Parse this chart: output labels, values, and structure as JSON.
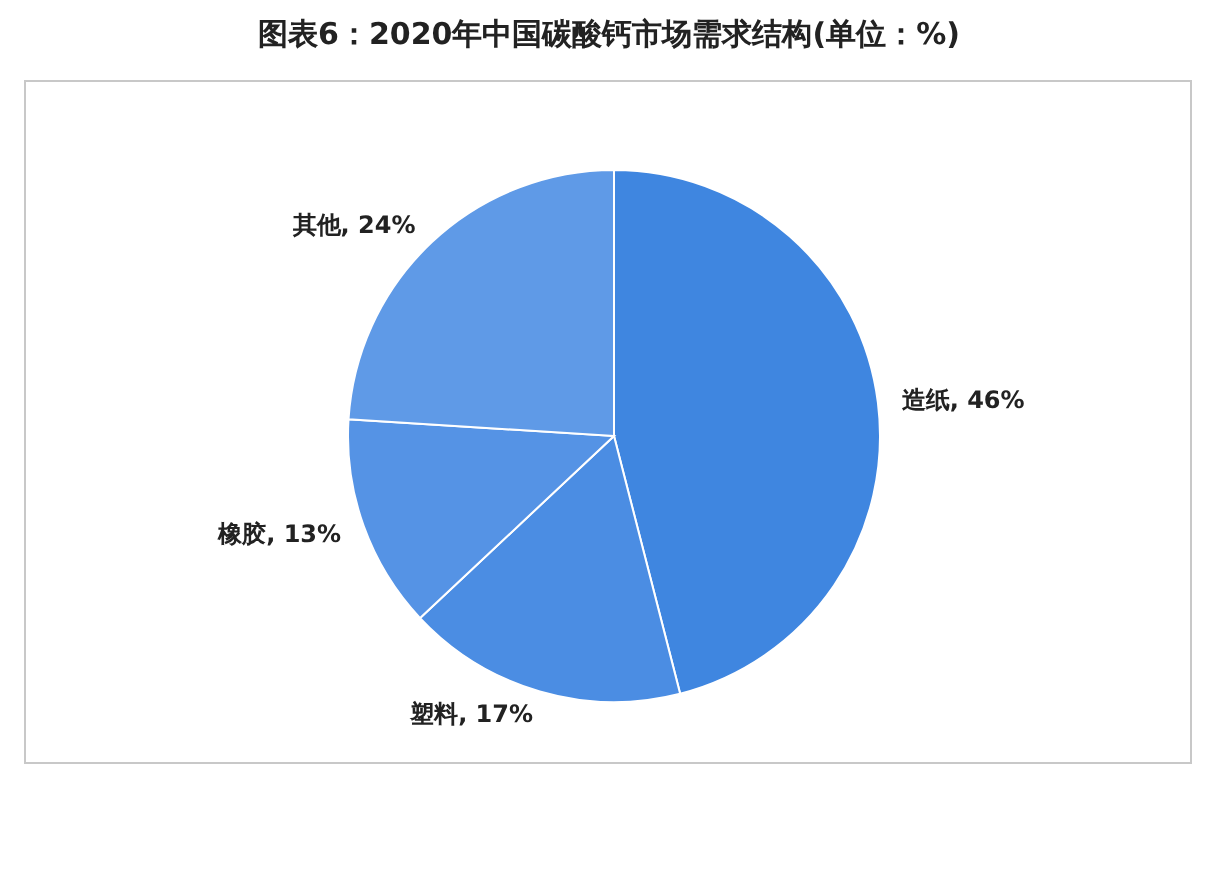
{
  "chart_data": {
    "type": "pie",
    "title": "图表6：2020年中国碳酸钙市场需求结构(单位：%)",
    "categories": [
      "造纸",
      "塑料",
      "橡胶",
      "其他"
    ],
    "values": [
      46,
      17,
      13,
      24
    ],
    "value_labels": [
      "46%",
      "17%",
      "13%",
      "24%"
    ],
    "colors": [
      "#3f86e0",
      "#4b8de3",
      "#5593e5",
      "#5f9ae7"
    ],
    "legend": false
  }
}
